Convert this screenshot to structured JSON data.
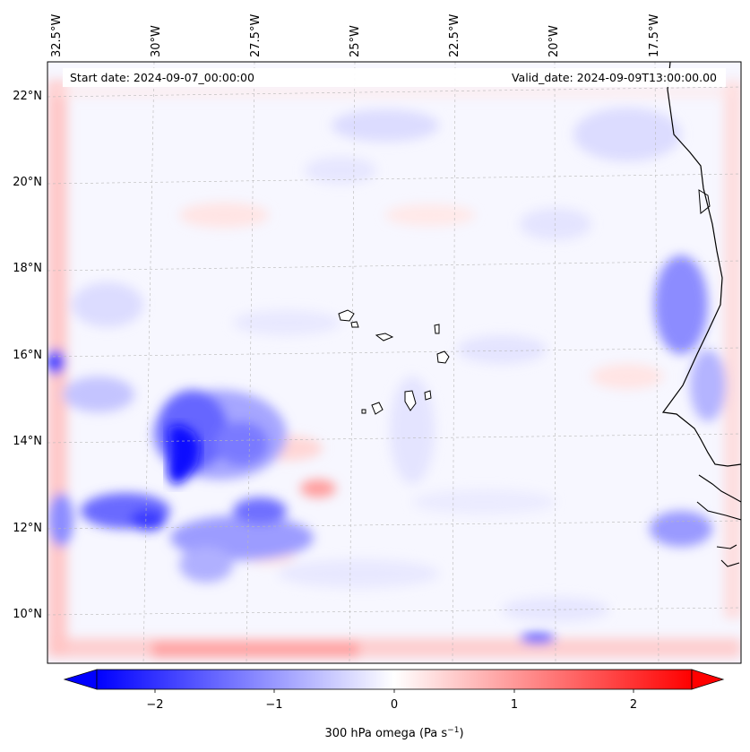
{
  "map": {
    "start_date_text": "Start date: 2024-09-07_00:00:00",
    "valid_date_text": "Valid_date: 2024-09-09T13:00:00.00",
    "lon_labels": [
      "32.5°W",
      "30°W",
      "27.5°W",
      "25°W",
      "22.5°W",
      "20°W",
      "17.5°W"
    ],
    "lat_labels": [
      "22°N",
      "20°N",
      "18°N",
      "16°N",
      "14°N",
      "12°N",
      "10°N"
    ],
    "colors": {
      "negative": "#0000ff",
      "positive": "#ff0000",
      "neutral": "#ffffff",
      "coast": "#000000",
      "grid": "#b0b0b0"
    }
  },
  "colorbar": {
    "ticks": [
      "−2",
      "−1",
      "0",
      "1",
      "2"
    ],
    "label_text": "300 hPa omega (Pa s",
    "label_sup": "−1",
    "label_close": ")",
    "range": [
      -2.7,
      2.7
    ],
    "colormap": "bwr"
  }
}
